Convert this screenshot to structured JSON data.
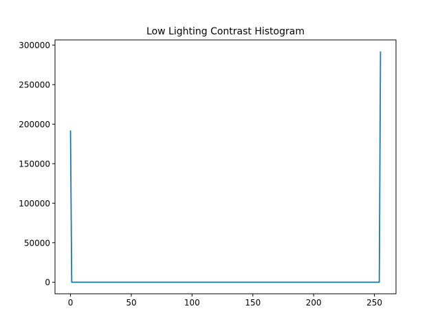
{
  "chart_data": {
    "type": "line",
    "title": "Low Lighting Contrast Histogram",
    "xlabel": "",
    "ylabel": "",
    "xlim": [
      -12.75,
      267.75
    ],
    "ylim": [
      -14600,
      306600
    ],
    "xticks": [
      0,
      50,
      100,
      150,
      200,
      250
    ],
    "yticks": [
      0,
      50000,
      100000,
      150000,
      200000,
      250000,
      300000
    ],
    "grid": false,
    "legend": "none",
    "series": [
      {
        "color": "#1f77b4",
        "x": [
          0,
          1,
          254,
          255
        ],
        "y": [
          192000,
          0,
          0,
          292000
        ]
      }
    ]
  }
}
